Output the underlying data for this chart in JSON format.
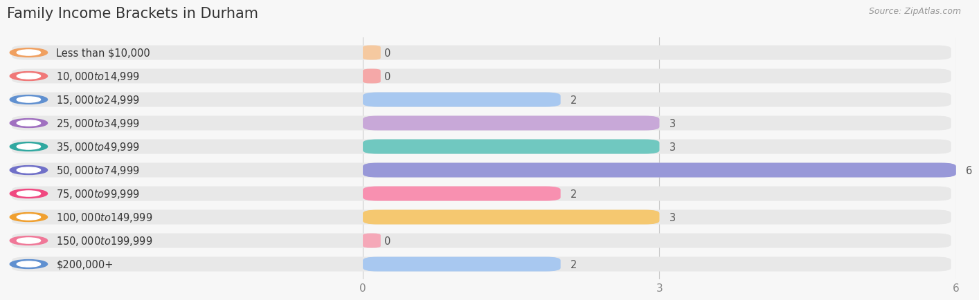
{
  "title": "Family Income Brackets in Durham",
  "source": "Source: ZipAtlas.com",
  "categories": [
    "Less than $10,000",
    "$10,000 to $14,999",
    "$15,000 to $24,999",
    "$25,000 to $34,999",
    "$35,000 to $49,999",
    "$50,000 to $74,999",
    "$75,000 to $99,999",
    "$100,000 to $149,999",
    "$150,000 to $199,999",
    "$200,000+"
  ],
  "values": [
    0,
    0,
    2,
    3,
    3,
    6,
    2,
    3,
    0,
    2
  ],
  "bar_colors": [
    "#F5C9A0",
    "#F5A8A8",
    "#A8C8F0",
    "#C8A8D8",
    "#70C8C0",
    "#9898D8",
    "#F890B0",
    "#F5C870",
    "#F5A8B8",
    "#A8C8F0"
  ],
  "circle_colors": [
    "#F0A060",
    "#F07878",
    "#6090D0",
    "#A070C0",
    "#30A8A0",
    "#7070C8",
    "#F04880",
    "#F0A030",
    "#F07898",
    "#6090D0"
  ],
  "xlim": [
    0,
    6
  ],
  "xticks": [
    0,
    3,
    6
  ],
  "background_color": "#f7f7f7",
  "row_bg_color": "#e8e8e8",
  "title_fontsize": 15,
  "label_fontsize": 10.5,
  "tick_fontsize": 11,
  "value_fontsize": 10.5
}
